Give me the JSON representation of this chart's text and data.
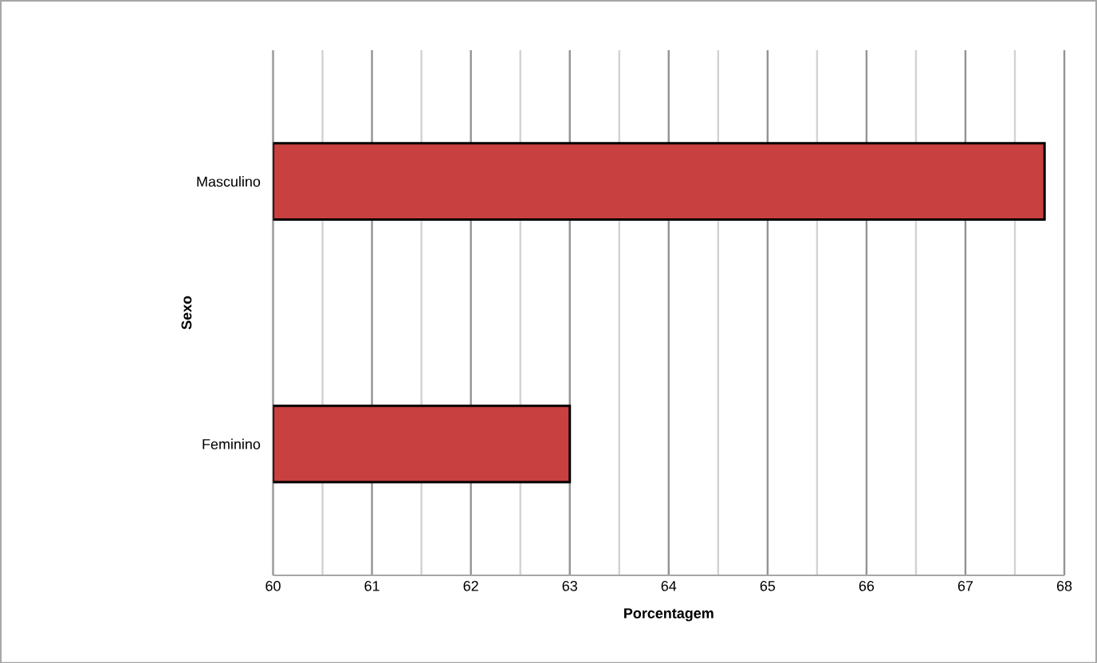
{
  "chart_data": {
    "type": "bar",
    "orientation": "horizontal",
    "xlabel": "Porcentagem",
    "ylabel": "Sexo",
    "categories": [
      "Masculino",
      "Feminino"
    ],
    "values": [
      67.8,
      63.0
    ],
    "color": "#c8403f",
    "xlim": [
      60,
      68
    ],
    "xticks": [
      60,
      61,
      62,
      63,
      64,
      65,
      66,
      67,
      68
    ],
    "grid": "x"
  }
}
